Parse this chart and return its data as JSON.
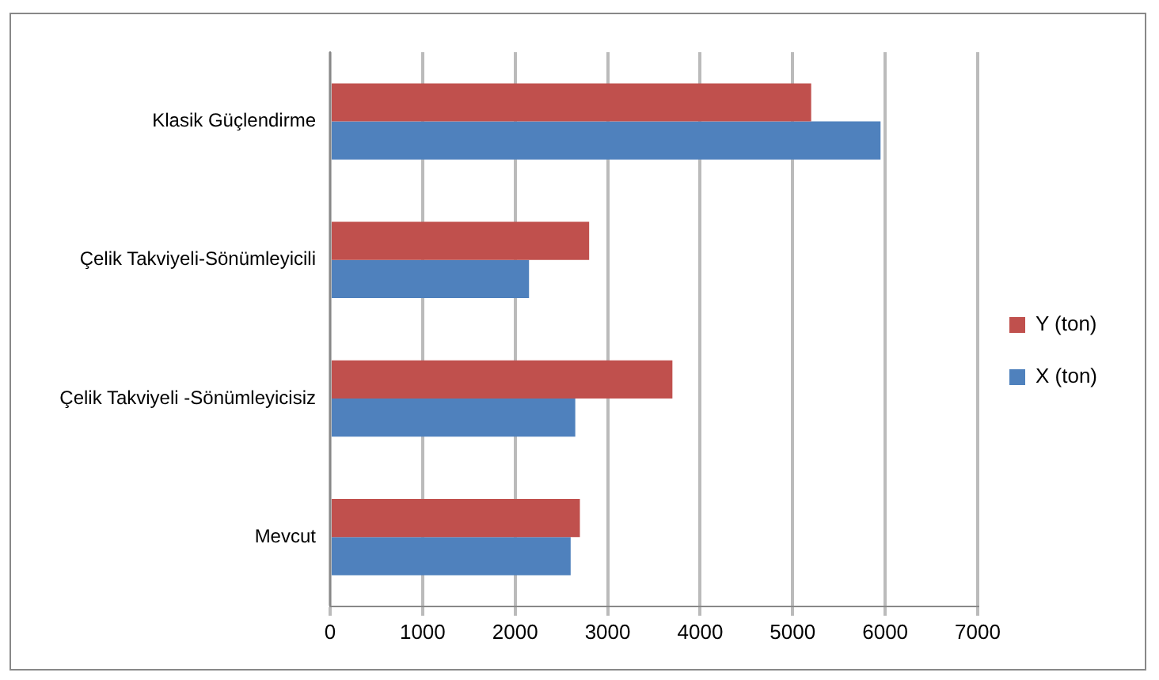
{
  "chart_data": {
    "type": "bar",
    "orientation": "horizontal",
    "categories": [
      "Klasik Güçlendirme",
      "Çelik Takviyeli-Sönümleyicili",
      "Çelik Takviyeli -Sönümleyicisiz",
      "Mevcut"
    ],
    "series": [
      {
        "name": "Y (ton)",
        "color": "#c0504d",
        "values": [
          5200,
          2800,
          3700,
          2700
        ]
      },
      {
        "name": "X (ton)",
        "color": "#4f81bd",
        "values": [
          5950,
          2150,
          2650,
          2600
        ]
      }
    ],
    "xlim": [
      0,
      7000
    ],
    "xticks": [
      0,
      1000,
      2000,
      3000,
      4000,
      5000,
      6000,
      7000
    ],
    "grid": "x",
    "legend": "right"
  }
}
